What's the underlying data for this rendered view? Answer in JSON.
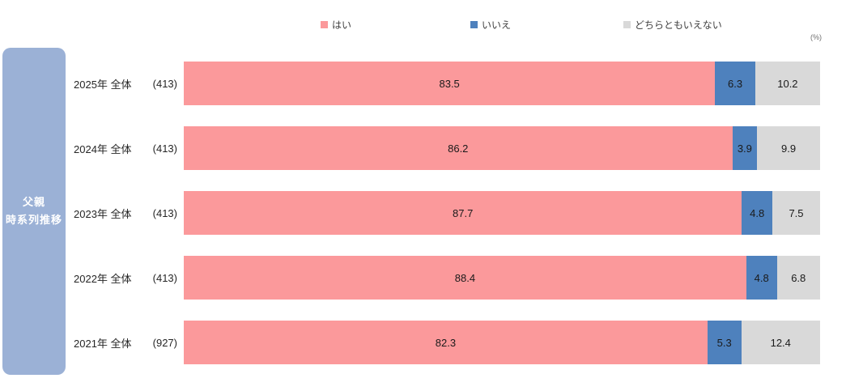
{
  "unit_label": "(%)",
  "sidebar": {
    "title_line1": "父親",
    "title_line2": "時系列推移"
  },
  "rows": [
    {
      "label": "2025年 全体",
      "n": "(413)"
    },
    {
      "label": "2024年 全体",
      "n": "(413)"
    },
    {
      "label": "2023年 全体",
      "n": "(413)"
    },
    {
      "label": "2022年 全体",
      "n": "(413)"
    },
    {
      "label": "2021年 全体",
      "n": "(927)"
    }
  ],
  "colors": {
    "series": [
      "#FB999B",
      "#4E81BD",
      "#D9D9D9"
    ],
    "sidebar": "#9BB1D6"
  },
  "chart_data": {
    "type": "bar",
    "orientation": "horizontal",
    "stacked": true,
    "unit": "%",
    "group_label": "父親 時系列推移",
    "categories": [
      "2025年 全体 (413)",
      "2024年 全体 (413)",
      "2023年 全体 (413)",
      "2022年 全体 (413)",
      "2021年 全体 (927)"
    ],
    "series": [
      {
        "name": "はい",
        "values": [
          83.5,
          86.2,
          87.7,
          88.4,
          82.3
        ]
      },
      {
        "name": "いいえ",
        "values": [
          6.3,
          3.9,
          4.8,
          4.8,
          5.3
        ]
      },
      {
        "name": "どちらともいえない",
        "values": [
          10.2,
          9.9,
          7.5,
          6.8,
          12.4
        ]
      }
    ],
    "xlim": [
      0,
      100
    ],
    "legend_position": "top",
    "grid": false
  }
}
